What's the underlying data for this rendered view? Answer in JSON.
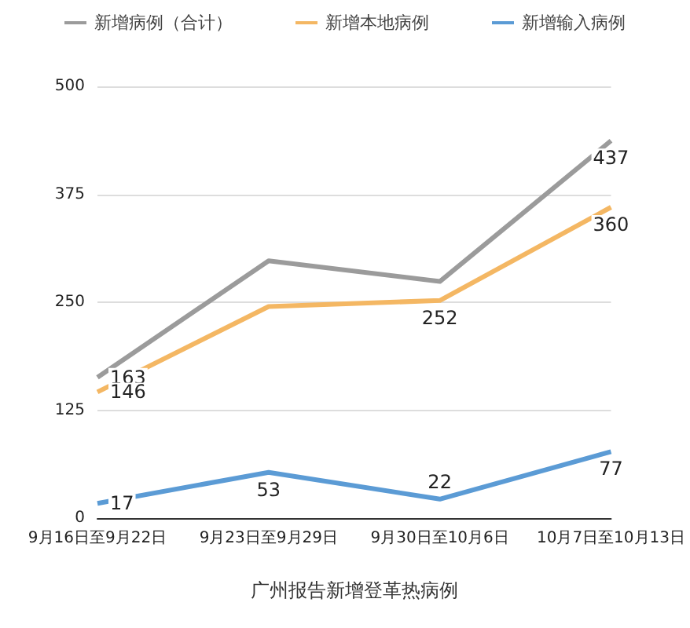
{
  "chart_data": {
    "type": "line",
    "xlabel": "广州报告新增登革热病例",
    "categories": [
      "9月16日至9月22日",
      "9月23日至9月29日",
      "9月30日至10月6日",
      "10月7日至10月13日"
    ],
    "series": [
      {
        "name": "新增病例（合计）",
        "color": "#9b9b9b",
        "values": [
          163,
          298,
          274,
          437
        ],
        "value_labels": [
          "163",
          null,
          null,
          "437"
        ]
      },
      {
        "name": "新增本地病例",
        "color": "#f4b763",
        "values": [
          146,
          245,
          252,
          360
        ],
        "value_labels": [
          "146",
          null,
          "252",
          "360"
        ]
      },
      {
        "name": "新增输入病例",
        "color": "#5b9bd5",
        "values": [
          17,
          53,
          22,
          77
        ],
        "value_labels": [
          "17",
          "53",
          "22",
          "77"
        ]
      }
    ],
    "ylim": [
      0,
      500
    ],
    "yticks": [
      0,
      125,
      250,
      375,
      500
    ],
    "grid": "y",
    "legend": "top",
    "marker": "none"
  }
}
